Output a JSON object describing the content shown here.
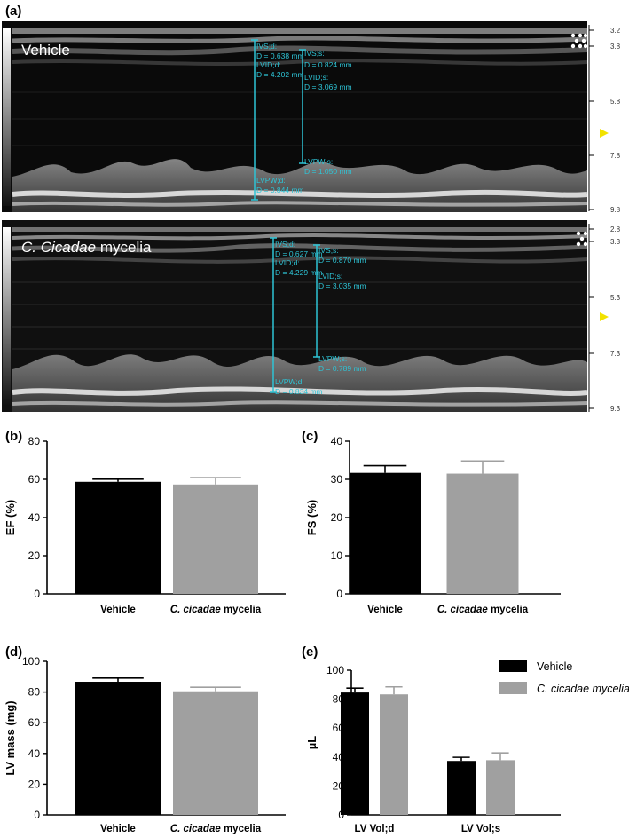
{
  "panel_labels": {
    "a": "(a)",
    "b": "(b)",
    "c": "(c)",
    "d": "(d)",
    "e": "(e)"
  },
  "echo": {
    "vehicle": {
      "title": "Vehicle",
      "depth_ticks": [
        "3.2",
        "3.8",
        "5.8",
        "7.8",
        "9.8"
      ],
      "measurements": [
        {
          "label": "IVS;d:",
          "value": "D = 0.638 mm"
        },
        {
          "label": "LVID;d:",
          "value": "D = 4.202 mm"
        },
        {
          "label": "IVS;s:",
          "value": "D = 0.824 mm"
        },
        {
          "label": "LVID;s:",
          "value": "D = 3.069 mm"
        },
        {
          "label": "LVPW;s:",
          "value": "D = 1.050 mm"
        },
        {
          "label": "LVPW;d:",
          "value": "D = 0.844 mm"
        }
      ]
    },
    "treated": {
      "title_italic": "C. Cicadae",
      "title_rest": " mycelia",
      "depth_ticks": [
        "2.8",
        "3.3",
        "5.3",
        "7.3",
        "9.3"
      ],
      "measurements": [
        {
          "label": "IVS;d:",
          "value": "D = 0.627 mm"
        },
        {
          "label": "LVID;d:",
          "value": "D = 4.229 mm"
        },
        {
          "label": "IVS;s:",
          "value": "D = 0.870 mm"
        },
        {
          "label": "LVID;s:",
          "value": "D = 3.035 mm"
        },
        {
          "label": "LVPW;s:",
          "value": "D = 0.789 mm"
        },
        {
          "label": "LVPW;d:",
          "value": "D = 0.834 mm"
        }
      ]
    }
  },
  "colors": {
    "vehicle": "#000000",
    "treated": "#a0a0a0",
    "cyan": "#2ec4d6",
    "marker": "#f2e200"
  },
  "chart_data": [
    {
      "type": "bar",
      "panel": "b",
      "categories": [
        "Vehicle",
        "C. cicadae mycelia"
      ],
      "values": [
        58.7,
        57.3
      ],
      "errors": [
        1.4,
        3.6
      ],
      "ylabel": "EF (%)",
      "ylim": [
        0,
        80
      ],
      "yticks": [
        "0",
        "20",
        "40",
        "60",
        "80"
      ]
    },
    {
      "type": "bar",
      "panel": "c",
      "categories": [
        "Vehicle",
        "C. cicadae mycelia"
      ],
      "values": [
        31.7,
        31.5
      ],
      "errors": [
        1.9,
        3.3
      ],
      "ylabel": "FS (%)",
      "ylim": [
        0,
        40
      ],
      "yticks": [
        "0",
        "10",
        "20",
        "30",
        "40"
      ]
    },
    {
      "type": "bar",
      "panel": "d",
      "categories": [
        "Vehicle",
        "C. cicadae mycelia"
      ],
      "values": [
        86.7,
        80.5
      ],
      "errors": [
        2.4,
        2.6
      ],
      "ylabel": "LV mass (mg)",
      "ylim": [
        0,
        100
      ],
      "yticks": [
        "0",
        "20",
        "40",
        "60",
        "80",
        "100"
      ]
    },
    {
      "type": "bar",
      "panel": "e",
      "categories": [
        "LV Vol;d",
        "LV Vol;s"
      ],
      "series": [
        {
          "name": "Vehicle",
          "values": [
            84.6,
            37.3
          ],
          "errors": [
            3.0,
            2.5
          ]
        },
        {
          "name": "C. cicadae mycelia",
          "values": [
            83.3,
            37.8
          ],
          "errors": [
            5.2,
            5.0
          ]
        }
      ],
      "ylabel": "µL",
      "ylim": [
        0,
        100
      ],
      "yticks": [
        "0",
        "20",
        "40",
        "60",
        "80",
        "100"
      ],
      "legend": "top-right"
    }
  ]
}
